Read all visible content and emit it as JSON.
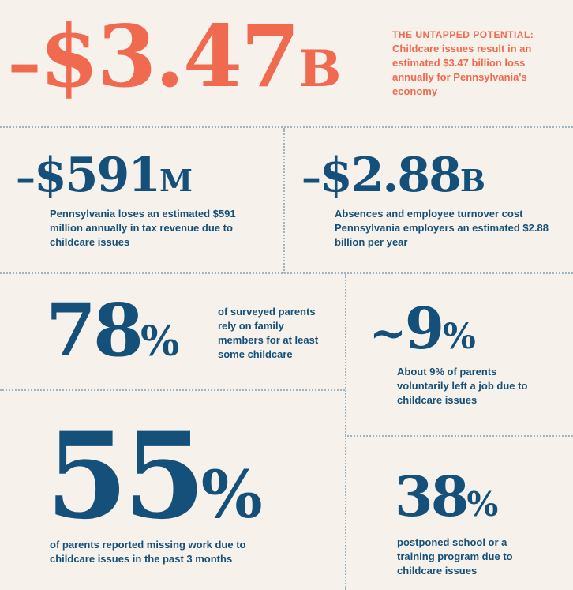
{
  "colors": {
    "accent": "#f06a50",
    "primary": "#15507a",
    "background": "#f6f1ea",
    "divider": "#9fb5c4"
  },
  "hero": {
    "prefix": "–",
    "value": "$3.47",
    "unit": "B",
    "heading": "THE UNTAPPED POTENTIAL:",
    "text": "Childcare issues result in an estimated $3.47 billion loss annually for Pennsylvania's economy"
  },
  "tax": {
    "prefix": "–",
    "value": "$591",
    "unit": "M",
    "text": "Pennsylvania loses an estimated $591 million annually in tax revenue due to childcare issues"
  },
  "employers": {
    "prefix": "–",
    "value": "$2.88",
    "unit": "B",
    "text": "Absences and employee turnover cost Pennsylvania employers an estimated $2.88 billion per year"
  },
  "family": {
    "value": "78",
    "unit": "%",
    "text": "of surveyed parents rely on family members for at least some childcare"
  },
  "leftjob": {
    "prefix": "~",
    "value": "9",
    "unit": "%",
    "text": "About 9% of parents voluntarily left a job due to childcare issues"
  },
  "missing": {
    "value": "55",
    "unit": "%",
    "text": "of parents reported missing work due to childcare issues in the past 3 months"
  },
  "postponed": {
    "value": "38",
    "unit": "%",
    "text": "postponed school or a training program due to childcare issues"
  }
}
